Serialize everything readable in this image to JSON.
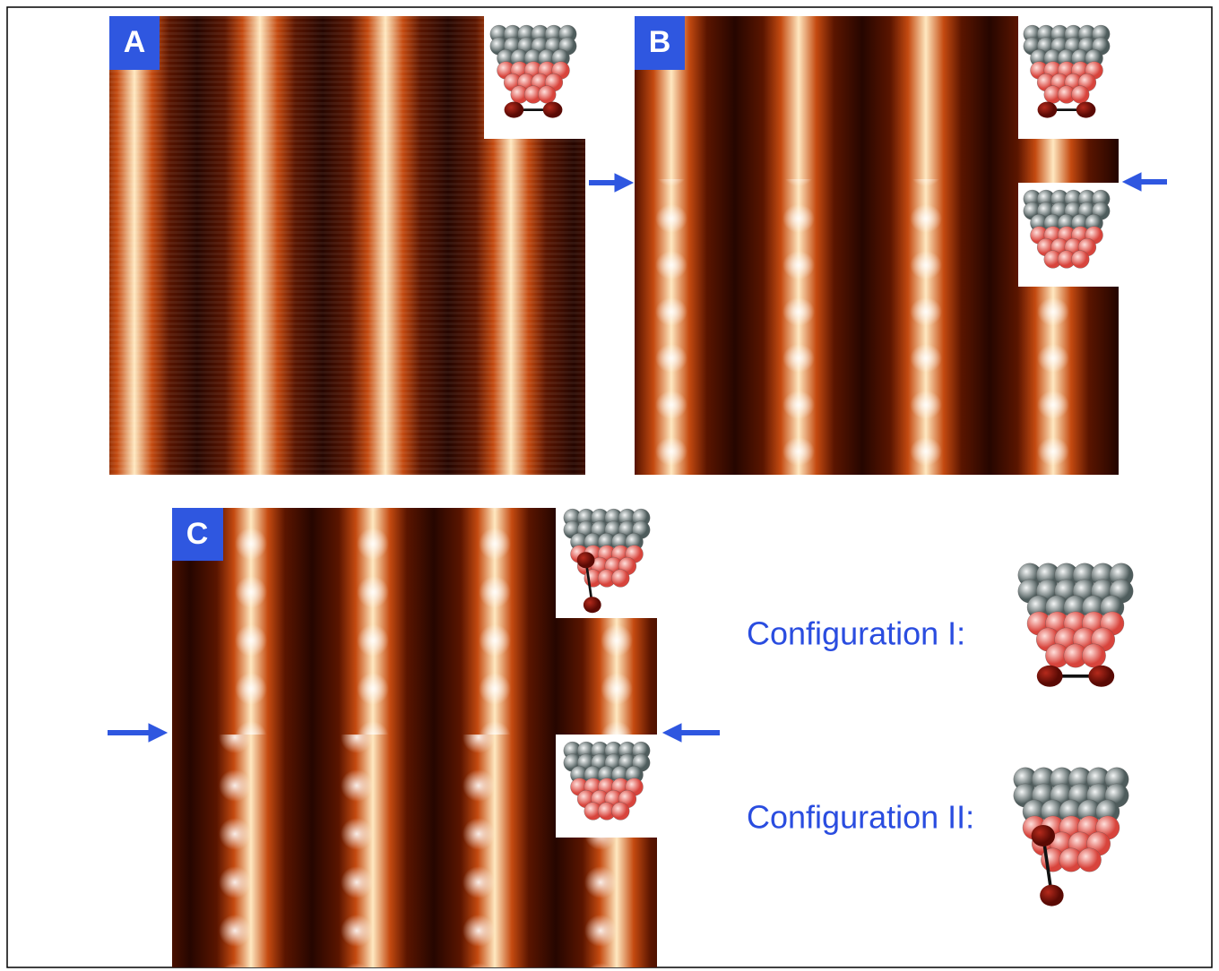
{
  "panels": [
    {
      "label": "A"
    },
    {
      "label": "B"
    },
    {
      "label": "C"
    }
  ],
  "legend": [
    {
      "label": "Configuration I:"
    },
    {
      "label": "Configuration II:"
    }
  ]
}
